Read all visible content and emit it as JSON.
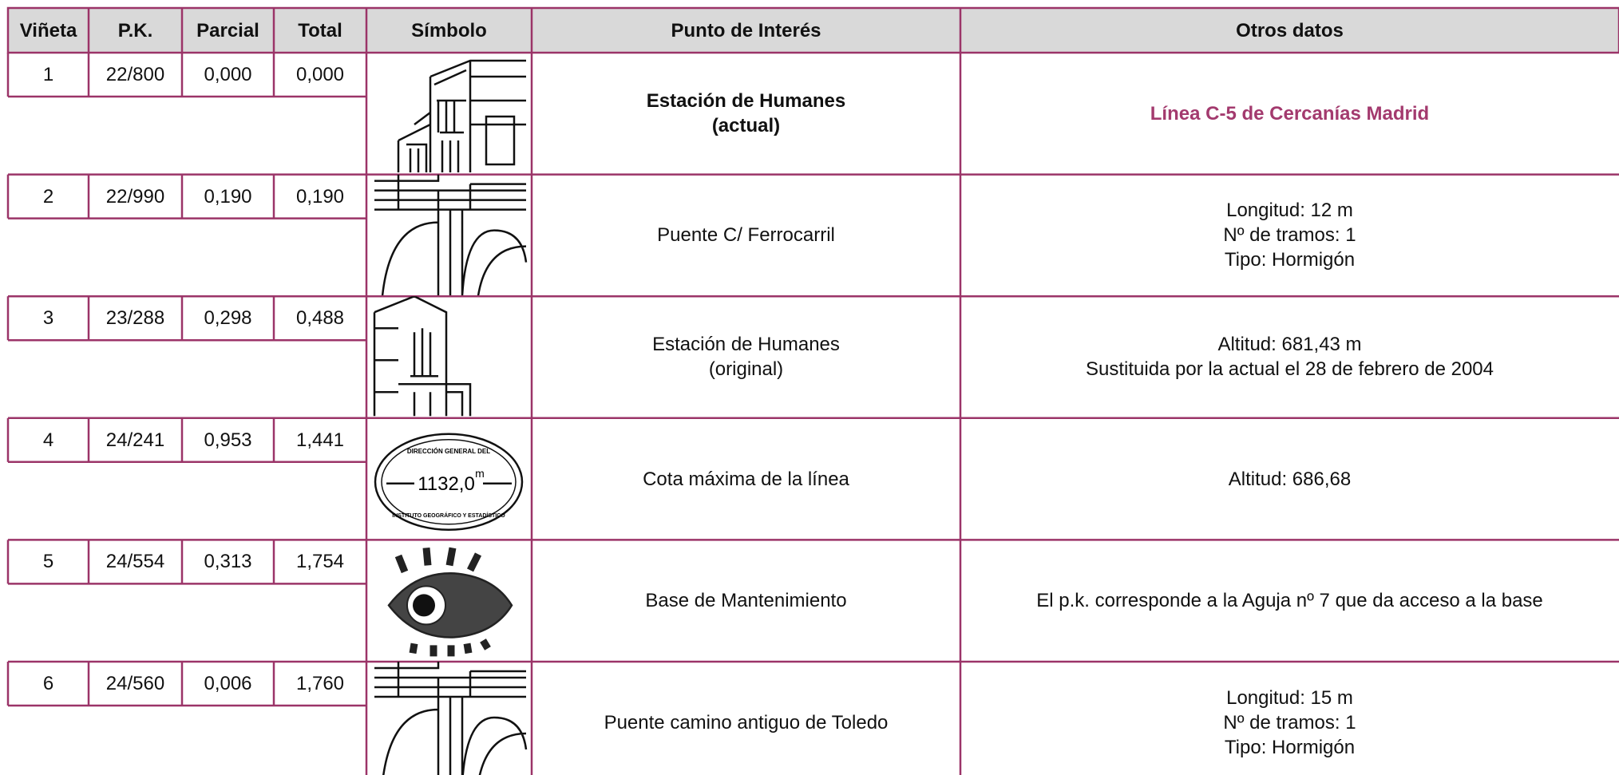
{
  "header": [
    "Viñeta",
    "P.K.",
    "Parcial",
    "Total",
    "Símbolo",
    "Punto de Interés",
    "Otros datos"
  ],
  "rows": [
    {
      "vineta": "1",
      "pk": "22/800",
      "parcial": "0,000",
      "total": "0,000",
      "punto": [
        "Estación de Humanes",
        "(actual)"
      ],
      "otros": [
        "Línea C-5 de Cercanías Madrid"
      ]
    },
    {
      "vineta": "2",
      "pk": "22/990",
      "parcial": "0,190",
      "total": "0,190",
      "punto": [
        "Puente C/ Ferrocarril"
      ],
      "otros": [
        "Longitud: 12 m",
        "Nº de tramos: 1",
        "Tipo: Hormigón"
      ]
    },
    {
      "vineta": "3",
      "pk": "23/288",
      "parcial": "0,298",
      "total": "0,488",
      "punto": [
        "Estación de Humanes",
        "(original)"
      ],
      "otros": [
        "Altitud: 681,43 m",
        "Sustituida por la actual el 28 de febrero de 2004"
      ]
    },
    {
      "vineta": "4",
      "pk": "24/241",
      "parcial": "0,953",
      "total": "1,441",
      "punto": [
        "Cota máxima de la línea"
      ],
      "otros": [
        "Altitud: 686,68"
      ],
      "symbol": [
        "DIRECCIÓN GENERAL DEL",
        "1132,0",
        "m",
        "INSTITUTO GEOGRÁFICO Y ESTADÍSTICO"
      ]
    },
    {
      "vineta": "5",
      "pk": "24/554",
      "parcial": "0,313",
      "total": "1,754",
      "punto": [
        "Base de Mantenimiento"
      ],
      "otros": [
        "El p.k. corresponde a la Aguja nº 7 que da acceso a la base"
      ]
    },
    {
      "vineta": "6",
      "pk": "24/560",
      "parcial": "0,006",
      "total": "1,760",
      "punto": [
        "Puente camino antiguo de Toledo"
      ],
      "otros": [
        "Longitud: 15 m",
        "Nº de tramos: 1",
        "Tipo: Hormigón"
      ]
    }
  ]
}
